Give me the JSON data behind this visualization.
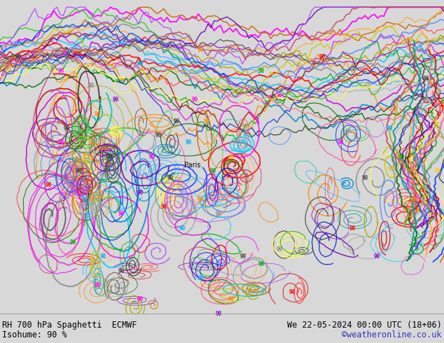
{
  "title_left": "RH 700 hPa Spaghetti  ECMWF",
  "title_right": "We 22-05-2024 00:00 UTC (18+06)",
  "subtitle_left": "Isohume: 90 %",
  "subtitle_right": "©weatheronline.co.uk",
  "land_color": "#c8e8a0",
  "sea_color": "#e8e8e8",
  "border_color": "#aaaaaa",
  "fig_width": 6.34,
  "fig_height": 4.9,
  "dpi": 100,
  "text_color_left": "#000000",
  "text_color_right": "#000000",
  "text_color_credit": "#3333bb",
  "font_size_title": 8.5,
  "font_size_subtitle": 8.5,
  "lon_min": -28,
  "lon_max": 45,
  "lat_min": 28,
  "lat_max": 72,
  "spaghetti_colors": [
    "#ff00ff",
    "#cc00cc",
    "#dd44dd",
    "#00ccff",
    "#0088cc",
    "#44bbff",
    "#ff8800",
    "#cc6600",
    "#ffaa33",
    "#00aa00",
    "#006600",
    "#33cc33",
    "#ff0000",
    "#cc0000",
    "#ff4444",
    "#8800cc",
    "#6600aa",
    "#aa44ff",
    "#888888",
    "#555555",
    "#aaaaaa",
    "#333333",
    "#cccc00",
    "#aaaa00",
    "#ffff44",
    "#0044ff",
    "#0022cc",
    "#4488ff",
    "#ff6688",
    "#cc4466",
    "#00ccaa",
    "#009988",
    "#ff44aa",
    "#cc2288"
  ]
}
